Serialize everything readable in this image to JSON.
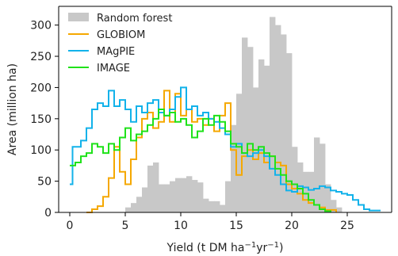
{
  "chart_data": {
    "type": "area",
    "title": "",
    "xlabel": "Yield (t DM ha",
    "xlabel_sup1": "−1",
    "xlabel_mid": "yr",
    "xlabel_sup2": "−1",
    "xlabel_end": ")",
    "ylabel": "Area (million ha)",
    "xlim": [
      -1,
      29
    ],
    "ylim": [
      0,
      330
    ],
    "xticks": [
      0,
      5,
      10,
      15,
      20,
      25
    ],
    "yticks": [
      0,
      50,
      100,
      150,
      200,
      250,
      300
    ],
    "legend_position": "top-left",
    "colors": {
      "random_forest": "#c8c8c8",
      "globiom": "#f5a800",
      "magpie": "#12b2ea",
      "image": "#1fe21a"
    },
    "random_forest": {
      "name": "Random forest",
      "bin_width": 0.5,
      "bins": [
        [
          5,
          8
        ],
        [
          5.5,
          15
        ],
        [
          6,
          25
        ],
        [
          6.5,
          40
        ],
        [
          7,
          75
        ],
        [
          7.5,
          80
        ],
        [
          8,
          45
        ],
        [
          8.5,
          45
        ],
        [
          9,
          50
        ],
        [
          9.5,
          55
        ],
        [
          10,
          55
        ],
        [
          10.5,
          58
        ],
        [
          11,
          52
        ],
        [
          11.5,
          48
        ],
        [
          12,
          22
        ],
        [
          12.5,
          18
        ],
        [
          13,
          18
        ],
        [
          13.5,
          12
        ],
        [
          14,
          50
        ],
        [
          14.5,
          140
        ],
        [
          15,
          190
        ],
        [
          15.5,
          280
        ],
        [
          16,
          265
        ],
        [
          16.5,
          200
        ],
        [
          17,
          245
        ],
        [
          17.5,
          235
        ],
        [
          18,
          313
        ],
        [
          18.5,
          300
        ],
        [
          19,
          285
        ],
        [
          19.5,
          255
        ],
        [
          20,
          105
        ],
        [
          20.5,
          80
        ],
        [
          21,
          65
        ],
        [
          21.5,
          65
        ],
        [
          22,
          120
        ],
        [
          22.5,
          110
        ],
        [
          23,
          45
        ],
        [
          23.5,
          20
        ],
        [
          24,
          8
        ]
      ]
    },
    "series": [
      {
        "name": "GLOBIOM",
        "points": [
          [
            1.5,
            0
          ],
          [
            2,
            5
          ],
          [
            2.5,
            10
          ],
          [
            3,
            25
          ],
          [
            3.5,
            55
          ],
          [
            4,
            105
          ],
          [
            4.5,
            65
          ],
          [
            5,
            45
          ],
          [
            5.5,
            85
          ],
          [
            6,
            120
          ],
          [
            6.5,
            150
          ],
          [
            7,
            160
          ],
          [
            7.5,
            135
          ],
          [
            8,
            145
          ],
          [
            8.5,
            195
          ],
          [
            9,
            145
          ],
          [
            9.5,
            190
          ],
          [
            10,
            155
          ],
          [
            10.5,
            165
          ],
          [
            11,
            145
          ],
          [
            11.5,
            150
          ],
          [
            12,
            140
          ],
          [
            12.5,
            150
          ],
          [
            13,
            130
          ],
          [
            13.5,
            155
          ],
          [
            14,
            175
          ],
          [
            14.5,
            100
          ],
          [
            15,
            60
          ],
          [
            15.5,
            90
          ],
          [
            16,
            100
          ],
          [
            16.5,
            85
          ],
          [
            17,
            95
          ],
          [
            17.5,
            80
          ],
          [
            18,
            90
          ],
          [
            18.5,
            80
          ],
          [
            19,
            75
          ],
          [
            19.5,
            45
          ],
          [
            20,
            38
          ],
          [
            20.5,
            30
          ],
          [
            21,
            20
          ],
          [
            21.5,
            15
          ],
          [
            22,
            12
          ],
          [
            22.5,
            8
          ],
          [
            23,
            4
          ],
          [
            24,
            0
          ]
        ]
      },
      {
        "name": "MAgPIE",
        "points": [
          [
            0,
            45
          ],
          [
            0.25,
            105
          ],
          [
            1,
            115
          ],
          [
            1.5,
            135
          ],
          [
            2,
            165
          ],
          [
            2.5,
            175
          ],
          [
            3,
            170
          ],
          [
            3.5,
            195
          ],
          [
            4,
            170
          ],
          [
            4.5,
            180
          ],
          [
            5,
            165
          ],
          [
            5.5,
            145
          ],
          [
            6,
            170
          ],
          [
            6.5,
            160
          ],
          [
            7,
            175
          ],
          [
            7.5,
            180
          ],
          [
            8,
            160
          ],
          [
            8.5,
            155
          ],
          [
            9,
            165
          ],
          [
            9.5,
            185
          ],
          [
            10,
            200
          ],
          [
            10.5,
            165
          ],
          [
            11,
            170
          ],
          [
            11.5,
            155
          ],
          [
            12,
            160
          ],
          [
            12.5,
            150
          ],
          [
            13,
            145
          ],
          [
            13.5,
            135
          ],
          [
            14,
            125
          ],
          [
            14.5,
            105
          ],
          [
            15,
            110
          ],
          [
            15.5,
            95
          ],
          [
            16,
            90
          ],
          [
            16.5,
            95
          ],
          [
            17,
            100
          ],
          [
            17.5,
            90
          ],
          [
            18,
            70
          ],
          [
            18.5,
            60
          ],
          [
            19,
            45
          ],
          [
            19.5,
            35
          ],
          [
            20,
            33
          ],
          [
            20.5,
            42
          ],
          [
            21,
            40
          ],
          [
            21.5,
            36
          ],
          [
            22,
            38
          ],
          [
            22.5,
            42
          ],
          [
            23,
            40
          ],
          [
            23.5,
            35
          ],
          [
            24,
            33
          ],
          [
            24.5,
            30
          ],
          [
            25,
            28
          ],
          [
            25.5,
            20
          ],
          [
            26,
            12
          ],
          [
            26.5,
            5
          ],
          [
            27,
            3
          ],
          [
            28,
            3
          ]
        ]
      },
      {
        "name": "IMAGE",
        "points": [
          [
            0,
            75
          ],
          [
            0.5,
            80
          ],
          [
            1,
            90
          ],
          [
            1.5,
            95
          ],
          [
            2,
            110
          ],
          [
            2.5,
            105
          ],
          [
            3,
            95
          ],
          [
            3.5,
            110
          ],
          [
            4,
            100
          ],
          [
            4.5,
            120
          ],
          [
            5,
            135
          ],
          [
            5.5,
            115
          ],
          [
            6,
            125
          ],
          [
            6.5,
            130
          ],
          [
            7,
            140
          ],
          [
            7.5,
            150
          ],
          [
            8,
            165
          ],
          [
            8.5,
            155
          ],
          [
            9,
            160
          ],
          [
            9.5,
            145
          ],
          [
            10,
            150
          ],
          [
            10.5,
            140
          ],
          [
            11,
            120
          ],
          [
            11.5,
            130
          ],
          [
            12,
            150
          ],
          [
            12.5,
            140
          ],
          [
            13,
            155
          ],
          [
            13.5,
            145
          ],
          [
            14,
            130
          ],
          [
            14.5,
            110
          ],
          [
            15,
            105
          ],
          [
            15.5,
            95
          ],
          [
            16,
            110
          ],
          [
            16.5,
            100
          ],
          [
            17,
            105
          ],
          [
            17.5,
            95
          ],
          [
            18,
            90
          ],
          [
            18.5,
            70
          ],
          [
            19,
            60
          ],
          [
            19.5,
            50
          ],
          [
            20,
            45
          ],
          [
            20.5,
            38
          ],
          [
            21,
            30
          ],
          [
            21.5,
            20
          ],
          [
            22,
            12
          ],
          [
            22.5,
            5
          ],
          [
            23,
            2
          ],
          [
            23.5,
            0
          ]
        ]
      }
    ]
  }
}
